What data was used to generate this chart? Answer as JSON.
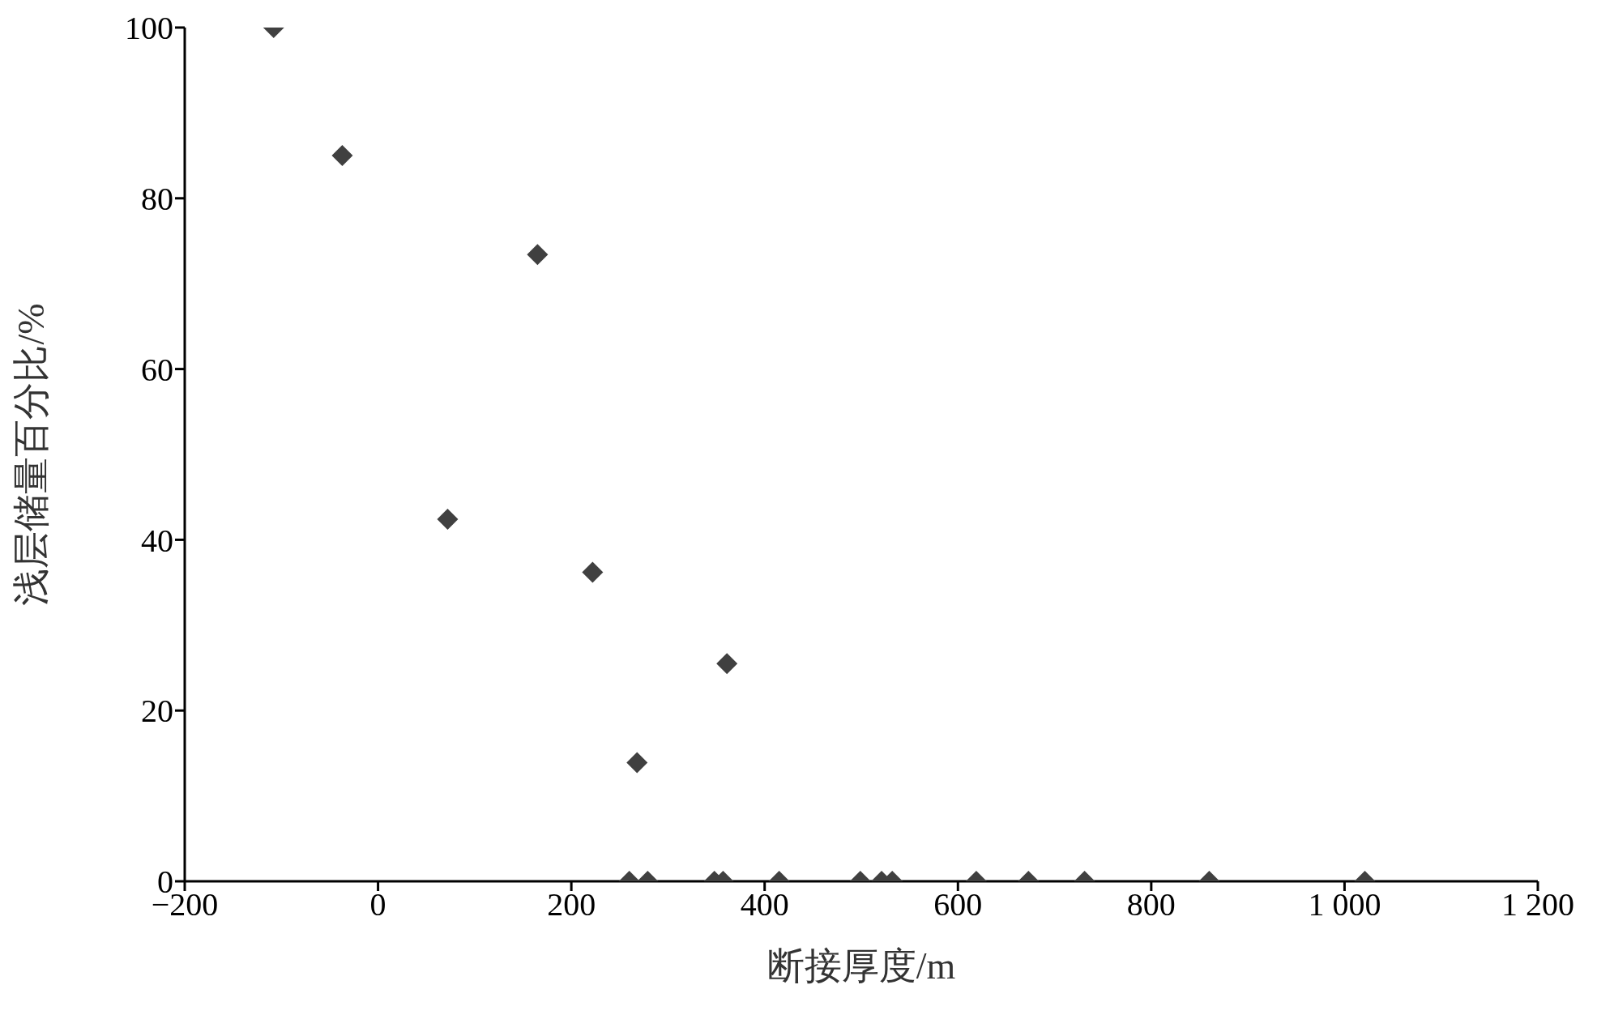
{
  "chart_data": {
    "type": "scatter",
    "xlabel": "断接厚度/m",
    "ylabel": "浅层储量百分比/%",
    "x": [
      -108,
      -37,
      72,
      165,
      222,
      268,
      361,
      260,
      279,
      348,
      357,
      415,
      499,
      521,
      532,
      619,
      673,
      731,
      860,
      1021
    ],
    "series": [
      {
        "color": "#404040",
        "values": [
          100,
          85,
          42.4,
          73.4,
          36.2,
          13.9,
          25.5,
          0,
          0,
          0,
          0,
          0,
          0,
          0,
          0,
          0,
          0,
          0,
          0,
          0
        ]
      }
    ],
    "xlim": [
      -200,
      1200
    ],
    "xticks": [
      -200,
      0,
      200,
      400,
      600,
      800,
      {
        "value": 1000,
        "label": "1 000"
      },
      {
        "value": 1200,
        "label": "1 200"
      }
    ],
    "ylim": [
      0,
      100
    ],
    "yticks": [
      0,
      20,
      40,
      60,
      80,
      100
    ],
    "grid": false,
    "marker": "diamond"
  }
}
